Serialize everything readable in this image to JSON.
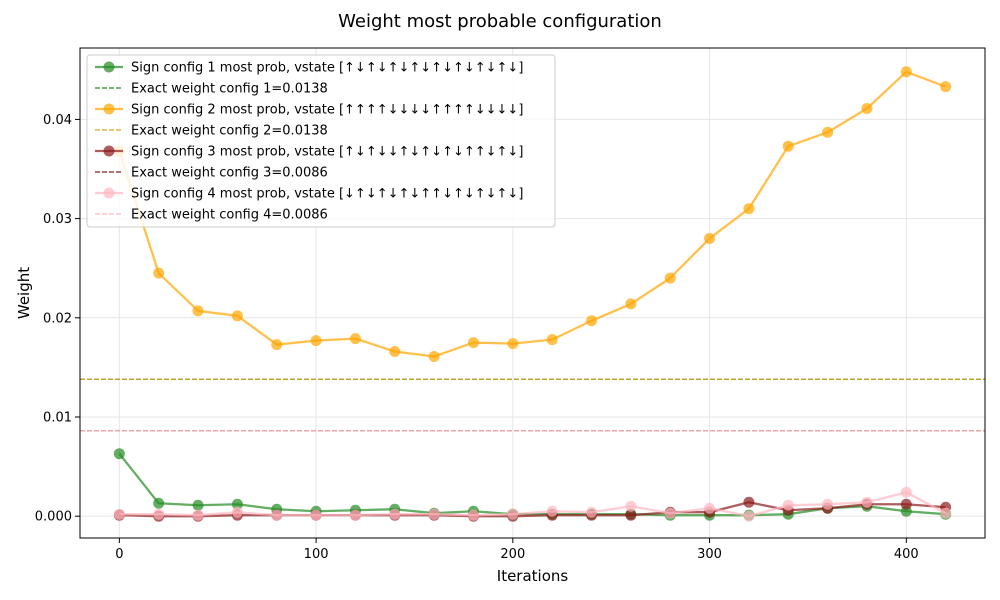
{
  "chart_data": {
    "type": "line",
    "title": "Weight most probable configuration",
    "xlabel": "Iterations",
    "ylabel": "Weight",
    "xlim": [
      -20,
      440
    ],
    "ylim": [
      -0.0022,
      0.0472
    ],
    "xticks": [
      0,
      100,
      200,
      300,
      400
    ],
    "yticks": [
      0.0,
      0.01,
      0.02,
      0.03,
      0.04
    ],
    "ytick_labels": [
      "0.000",
      "0.01",
      "0.02",
      "0.03",
      "0.04"
    ],
    "grid": true,
    "legend_position": "top-left",
    "x": [
      0,
      20,
      40,
      60,
      80,
      100,
      120,
      140,
      160,
      180,
      200,
      220,
      240,
      260,
      280,
      300,
      320,
      340,
      360,
      380,
      400,
      420
    ],
    "series": [
      {
        "name": "Sign config 1 most prob, vstate [↑↓↑↓↑↓↑↓↑↓↑↓↑↓↑↓]",
        "color": "#228B22",
        "values": [
          0.0063,
          0.0013,
          0.0011,
          0.0012,
          0.0007,
          0.0005,
          0.0006,
          0.0007,
          0.0003,
          0.0005,
          0.0002,
          0.0002,
          0.0002,
          0.0002,
          0.0001,
          0.0001,
          0.0001,
          0.0002,
          0.0008,
          0.001,
          0.0005,
          0.0002
        ],
        "exact_label": "Exact weight config 1=0.0138",
        "exact_value": 0.0138,
        "exact_color": "#228B22"
      },
      {
        "name": "Sign config 2 most prob, vstate [↑↑↑↑↓↓↓↓↑↑↑↑↓↓↓↓]",
        "color": "#FFA500",
        "values": [
          0.0368,
          0.0245,
          0.0207,
          0.0202,
          0.0173,
          0.0177,
          0.0179,
          0.0166,
          0.0161,
          0.0175,
          0.0174,
          0.0178,
          0.0197,
          0.0214,
          0.024,
          0.028,
          0.031,
          0.0373,
          0.0387,
          0.0411,
          0.0448,
          0.0433
        ],
        "exact_label": "Exact weight config 2=0.0138",
        "exact_value": 0.0138,
        "exact_color": "#DAA520"
      },
      {
        "name": "Sign config 3 most prob, vstate [↑↓↑↓↓↑↓↑↓↑↓↑↑↓↑↓]",
        "color": "#8B1A1A",
        "values": [
          0.0001,
          0.0,
          0.0,
          0.0001,
          0.0001,
          0.0001,
          0.0001,
          0.0001,
          0.0001,
          0.0,
          0.0,
          0.0001,
          0.0001,
          0.0001,
          0.0004,
          0.0004,
          0.0014,
          0.0006,
          0.0008,
          0.0012,
          0.0012,
          0.0009
        ],
        "exact_label": "Exact weight config 3=0.0086",
        "exact_value": 0.0086,
        "exact_color": "#8B1A1A"
      },
      {
        "name": "Sign config 4 most prob, vstate [↓↑↓↑↓↑↓↑↑↓↑↓↑↓↑↓]",
        "color": "#FFB6C1",
        "values": [
          0.0002,
          0.0002,
          0.0001,
          0.0004,
          0.0001,
          0.0001,
          0.0001,
          0.0002,
          0.0002,
          0.0001,
          0.0002,
          0.0005,
          0.0004,
          0.001,
          0.0003,
          0.0008,
          0.0,
          0.0011,
          0.0012,
          0.0014,
          0.0024,
          0.0003
        ],
        "exact_label": "Exact weight config 4=0.0086",
        "exact_value": 0.0086,
        "exact_color": "#FFB6C1"
      }
    ]
  }
}
